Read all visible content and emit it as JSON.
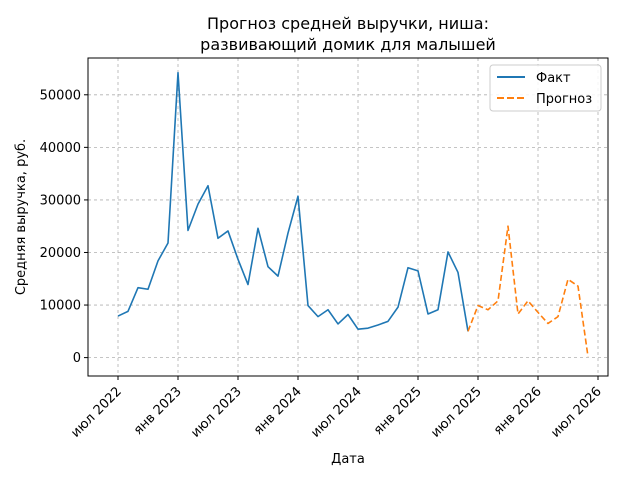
{
  "chart_data": {
    "type": "line",
    "title_line1": "Прогноз средней выручки, ниша:",
    "title_line2": "развивающий домик для малышей",
    "xlabel": "Дата",
    "ylabel": "Средняя выручка, руб.",
    "ylim": [
      -3500,
      57000
    ],
    "y_ticks": [
      0,
      10000,
      20000,
      30000,
      40000,
      50000
    ],
    "x_ticks": [
      {
        "date": "2022-07",
        "label": "июл 2022"
      },
      {
        "date": "2023-01",
        "label": "янв 2023"
      },
      {
        "date": "2023-07",
        "label": "июл 2023"
      },
      {
        "date": "2024-01",
        "label": "янв 2024"
      },
      {
        "date": "2024-07",
        "label": "июл 2024"
      },
      {
        "date": "2025-01",
        "label": "янв 2025"
      },
      {
        "date": "2025-07",
        "label": "июл 2025"
      },
      {
        "date": "2026-01",
        "label": "янв 2026"
      },
      {
        "date": "2026-07",
        "label": "июл 2026"
      }
    ],
    "xlim": [
      "2022-04",
      "2026-08"
    ],
    "grid": true,
    "legend_position": "top-right",
    "series": [
      {
        "name": "Факт",
        "color": "#1f77b4",
        "style": "solid",
        "points": [
          [
            "2022-07",
            7900
          ],
          [
            "2022-08",
            8800
          ],
          [
            "2022-09",
            13300
          ],
          [
            "2022-10",
            13000
          ],
          [
            "2022-11",
            18400
          ],
          [
            "2022-12",
            21800
          ],
          [
            "2023-01",
            54200
          ],
          [
            "2023-02",
            24200
          ],
          [
            "2023-03",
            29200
          ],
          [
            "2023-04",
            32700
          ],
          [
            "2023-05",
            22700
          ],
          [
            "2023-06",
            24100
          ],
          [
            "2023-07",
            18700
          ],
          [
            "2023-08",
            13900
          ],
          [
            "2023-09",
            24600
          ],
          [
            "2023-10",
            17300
          ],
          [
            "2023-11",
            15500
          ],
          [
            "2023-12",
            23700
          ],
          [
            "2024-01",
            30700
          ],
          [
            "2024-02",
            9900
          ],
          [
            "2024-03",
            7800
          ],
          [
            "2024-04",
            9100
          ],
          [
            "2024-05",
            6400
          ],
          [
            "2024-06",
            8200
          ],
          [
            "2024-07",
            5400
          ],
          [
            "2024-08",
            5600
          ],
          [
            "2024-09",
            6200
          ],
          [
            "2024-10",
            6900
          ],
          [
            "2024-11",
            9600
          ],
          [
            "2024-12",
            17100
          ],
          [
            "2025-01",
            16500
          ],
          [
            "2025-02",
            8300
          ],
          [
            "2025-03",
            9100
          ],
          [
            "2025-04",
            20100
          ],
          [
            "2025-05",
            16200
          ],
          [
            "2025-06",
            5000
          ]
        ]
      },
      {
        "name": "Прогноз",
        "color": "#ff7f0e",
        "style": "dashed",
        "points": [
          [
            "2025-06",
            5000
          ],
          [
            "2025-07",
            9900
          ],
          [
            "2025-08",
            9100
          ],
          [
            "2025-09",
            10800
          ],
          [
            "2025-10",
            25000
          ],
          [
            "2025-11",
            8300
          ],
          [
            "2025-12",
            10800
          ],
          [
            "2026-01",
            8600
          ],
          [
            "2026-02",
            6500
          ],
          [
            "2026-03",
            7800
          ],
          [
            "2026-04",
            14900
          ],
          [
            "2026-05",
            13600
          ],
          [
            "2026-06",
            200
          ]
        ]
      }
    ]
  }
}
